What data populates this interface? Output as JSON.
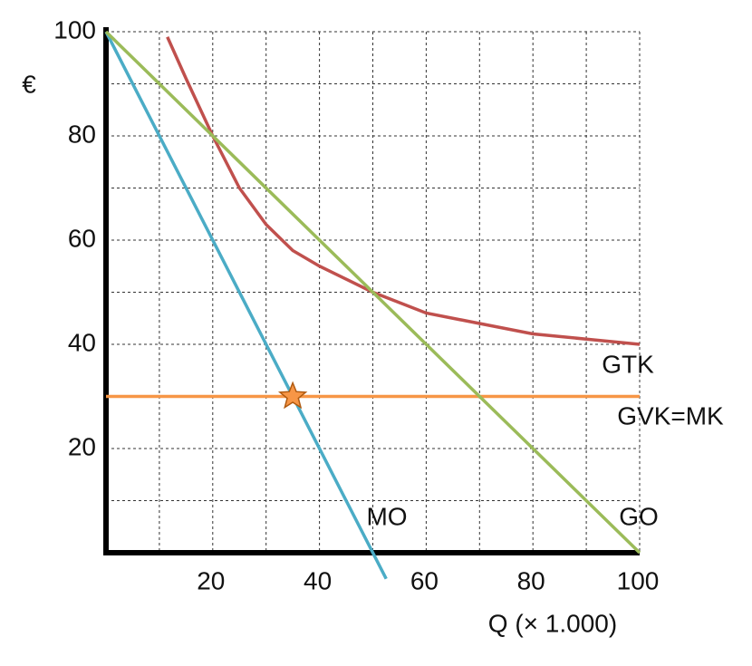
{
  "chart_data": {
    "type": "line",
    "y_label": "€",
    "x_label": "Q (× 1.000)",
    "xlim": [
      0,
      100
    ],
    "ylim": [
      0,
      100
    ],
    "xticks": [
      20,
      40,
      60,
      80,
      100
    ],
    "yticks": [
      20,
      40,
      60,
      80,
      100
    ],
    "xgrid": [
      10,
      20,
      30,
      40,
      50,
      60,
      70,
      80,
      90,
      100
    ],
    "ygrid": [
      10,
      20,
      30,
      40,
      50,
      60,
      70,
      80,
      90,
      100
    ],
    "series": [
      {
        "name": "GTK",
        "color": "#c0504d",
        "x": [
          11.5,
          15,
          20,
          25,
          30,
          35,
          40,
          50,
          60,
          70,
          80,
          90,
          100
        ],
        "values": [
          99,
          91,
          80,
          70,
          63,
          58,
          55,
          50,
          46,
          44,
          42,
          41,
          40
        ]
      },
      {
        "name": "GVK=MK",
        "color": "#f79646",
        "x": [
          0,
          100
        ],
        "values": [
          30,
          30
        ]
      },
      {
        "name": "MO",
        "color": "#4bacc6",
        "x": [
          0,
          52.5
        ],
        "values": [
          100,
          -5
        ]
      },
      {
        "name": "GO",
        "color": "#9bbb59",
        "x": [
          0,
          100
        ],
        "values": [
          100,
          0
        ]
      }
    ],
    "marker": {
      "x": 35,
      "y": 30,
      "color": "#f79646"
    }
  }
}
